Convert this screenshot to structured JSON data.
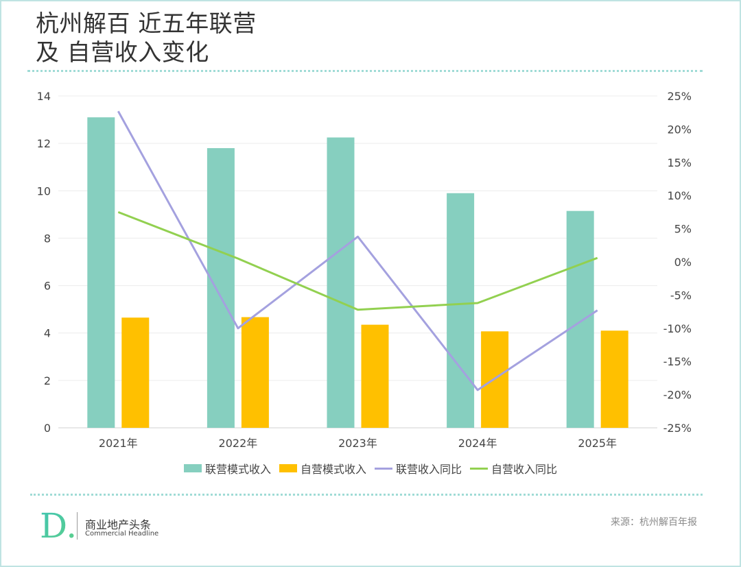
{
  "header": {
    "title_line1": "杭州解百 近五年联营",
    "title_line2": "及 自营收入变化"
  },
  "chart_data": {
    "type": "bar",
    "categories": [
      "2021年",
      "2022年",
      "2023年",
      "2024年",
      "2025年"
    ],
    "series": [
      {
        "name": "联营模式收入",
        "kind": "bar",
        "axis": "left",
        "color": "#86cfbf",
        "values": [
          13.1,
          11.8,
          12.25,
          9.9,
          9.15
        ]
      },
      {
        "name": "自营模式收入",
        "kind": "bar",
        "axis": "left",
        "color": "#ffc000",
        "values": [
          4.65,
          4.67,
          4.35,
          4.07,
          4.1
        ]
      },
      {
        "name": "联营收入同比",
        "kind": "line",
        "axis": "right",
        "color": "#a4a1df",
        "values": [
          22.7,
          -10.0,
          3.8,
          -19.3,
          -7.3
        ]
      },
      {
        "name": "自营收入同比",
        "kind": "line",
        "axis": "right",
        "color": "#92d050",
        "values": [
          7.5,
          0.5,
          -7.2,
          -6.2,
          0.6
        ]
      }
    ],
    "y_left": {
      "min": 0,
      "max": 14,
      "ticks": [
        "0",
        "2",
        "4",
        "6",
        "8",
        "10",
        "12",
        "14"
      ]
    },
    "y_right": {
      "min": -25,
      "max": 25,
      "ticks": [
        "-25%",
        "-20%",
        "-15%",
        "-10%",
        "-5%",
        "0%",
        "5%",
        "10%",
        "15%",
        "20%",
        "25%"
      ]
    },
    "grid": true,
    "legend": "bottom"
  },
  "footer": {
    "brand_mark": "D.",
    "brand_cn": "商业地产头条",
    "brand_en": "Commercial Headline",
    "source": "来源：杭州解百年报"
  },
  "colors": {
    "teal": "#86cfbf",
    "gold": "#ffc000",
    "lavender": "#a4a1df",
    "green": "#92d050",
    "frame": "#bfe3e2"
  }
}
